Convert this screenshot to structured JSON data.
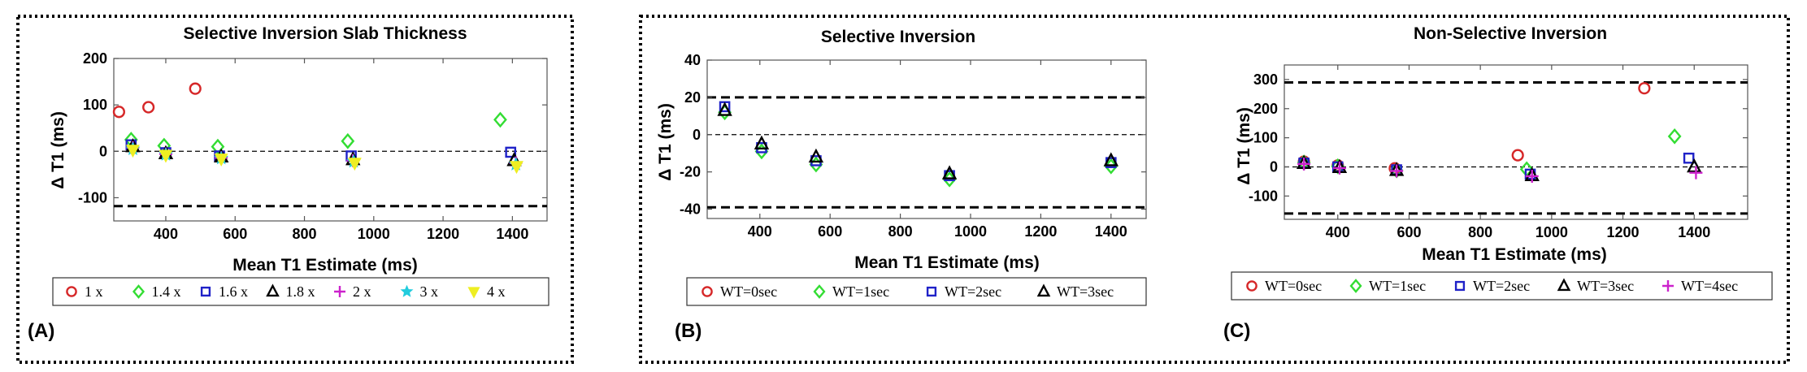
{
  "chart_data": [
    {
      "type": "scatter",
      "panel_label": "(A)",
      "title": "Selective Inversion Slab Thickness",
      "xlabel": "Mean T1 Estimate (ms)",
      "ylabel": "Δ T1 (ms)",
      "xlim": [
        250,
        1500
      ],
      "ylim": [
        -150,
        200
      ],
      "xticks": [
        400,
        600,
        800,
        1000,
        1200,
        1400
      ],
      "yticks": [
        -100,
        0,
        100,
        200
      ],
      "mean_line": 0,
      "limits_of_agreement": [
        -118
      ],
      "grid": false,
      "legend_position": "bottom",
      "series": [
        {
          "name": "1 x",
          "marker": "circle",
          "color": "#d62728",
          "points": [
            [
              265,
              85
            ],
            [
              350,
              95
            ],
            [
              485,
              135
            ]
          ]
        },
        {
          "name": "1.4 x",
          "marker": "diamond",
          "color": "#33dd33",
          "points": [
            [
              300,
              25
            ],
            [
              395,
              12
            ],
            [
              550,
              10
            ],
            [
              925,
              22
            ],
            [
              1365,
              68
            ]
          ]
        },
        {
          "name": "1.6 x",
          "marker": "square",
          "color": "#1f22c8",
          "points": [
            [
              300,
              14
            ],
            [
              400,
              -3
            ],
            [
              555,
              -10
            ],
            [
              935,
              -10
            ],
            [
              1395,
              -2
            ]
          ]
        },
        {
          "name": "1.8 x",
          "marker": "triangle",
          "color": "#000000",
          "points": [
            [
              305,
              10
            ],
            [
              400,
              -5
            ],
            [
              560,
              -12
            ],
            [
              940,
              -18
            ],
            [
              1405,
              -20
            ]
          ]
        },
        {
          "name": "2 x",
          "marker": "plus",
          "color": "#cc22cc",
          "points": [
            [
              305,
              8
            ],
            [
              400,
              -6
            ],
            [
              560,
              -14
            ],
            [
              940,
              -20
            ],
            [
              1410,
              -25
            ]
          ]
        },
        {
          "name": "3 x",
          "marker": "star",
          "color": "#22ccdd",
          "points": [
            [
              305,
              5
            ],
            [
              400,
              -7
            ],
            [
              560,
              -15
            ],
            [
              942,
              -22
            ],
            [
              1410,
              -28
            ]
          ]
        },
        {
          "name": "4 x",
          "marker": "triangle-down",
          "color": "#eeee22",
          "points": [
            [
              305,
              3
            ],
            [
              400,
              -8
            ],
            [
              560,
              -16
            ],
            [
              945,
              -25
            ],
            [
              1412,
              -32
            ]
          ]
        }
      ]
    },
    {
      "type": "scatter",
      "panel_label": "(B)",
      "title": "Selective Inversion",
      "xlabel": "Mean T1 Estimate (ms)",
      "ylabel": "Δ T1 (ms)",
      "xlim": [
        250,
        1500
      ],
      "ylim": [
        -45,
        40
      ],
      "xticks": [
        400,
        600,
        800,
        1000,
        1200,
        1400
      ],
      "yticks": [
        -40,
        -20,
        0,
        20,
        40
      ],
      "mean_line": 0,
      "limits_of_agreement": [
        20,
        -39
      ],
      "grid": false,
      "legend_position": "bottom",
      "series": [
        {
          "name": "WT=0sec",
          "marker": "circle",
          "color": "#d62728",
          "points": []
        },
        {
          "name": "WT=1sec",
          "marker": "diamond",
          "color": "#33dd33",
          "points": [
            [
              300,
              12
            ],
            [
              405,
              -9
            ],
            [
              560,
              -16
            ],
            [
              940,
              -24
            ],
            [
              1400,
              -17
            ]
          ]
        },
        {
          "name": "WT=2sec",
          "marker": "square",
          "color": "#1f22c8",
          "points": [
            [
              300,
              15
            ],
            [
              405,
              -7
            ],
            [
              560,
              -14
            ],
            [
              940,
              -22
            ],
            [
              1400,
              -15
            ]
          ]
        },
        {
          "name": "WT=3sec",
          "marker": "triangle",
          "color": "#000000",
          "points": [
            [
              300,
              13
            ],
            [
              405,
              -5
            ],
            [
              560,
              -12
            ],
            [
              940,
              -21
            ],
            [
              1400,
              -14
            ]
          ]
        }
      ]
    },
    {
      "type": "scatter",
      "panel_label": "(C)",
      "title": "Non-Selective Inversion",
      "xlabel": "Mean T1 Estimate (ms)",
      "ylabel": "Δ T1 (ms)",
      "xlim": [
        250,
        1550
      ],
      "ylim": [
        -180,
        350
      ],
      "xticks": [
        400,
        600,
        800,
        1000,
        1200,
        1400
      ],
      "yticks": [
        -100,
        0,
        100,
        200,
        300
      ],
      "mean_line": 0,
      "limits_of_agreement": [
        290,
        -160
      ],
      "grid": false,
      "legend_position": "bottom",
      "series": [
        {
          "name": "WT=0sec",
          "marker": "circle",
          "color": "#d62728",
          "points": [
            [
              305,
              18
            ],
            [
              400,
              5
            ],
            [
              560,
              -5
            ],
            [
              905,
              40
            ],
            [
              1260,
              270
            ]
          ]
        },
        {
          "name": "WT=1sec",
          "marker": "diamond",
          "color": "#33dd33",
          "points": [
            [
              305,
              15
            ],
            [
              400,
              2
            ],
            [
              565,
              -12
            ],
            [
              930,
              -8
            ],
            [
              1345,
              105
            ]
          ]
        },
        {
          "name": "WT=2sec",
          "marker": "square",
          "color": "#1f22c8",
          "points": [
            [
              305,
              13
            ],
            [
              400,
              0
            ],
            [
              565,
              -10
            ],
            [
              940,
              -25
            ],
            [
              1385,
              30
            ]
          ]
        },
        {
          "name": "WT=3sec",
          "marker": "triangle",
          "color": "#000000",
          "points": [
            [
              305,
              12
            ],
            [
              405,
              -2
            ],
            [
              565,
              -12
            ],
            [
              945,
              -30
            ],
            [
              1400,
              0
            ]
          ]
        },
        {
          "name": "WT=4sec",
          "marker": "plus",
          "color": "#cc22cc",
          "points": [
            [
              305,
              10
            ],
            [
              405,
              -4
            ],
            [
              565,
              -14
            ],
            [
              945,
              -32
            ],
            [
              1405,
              -20
            ]
          ]
        }
      ]
    }
  ]
}
